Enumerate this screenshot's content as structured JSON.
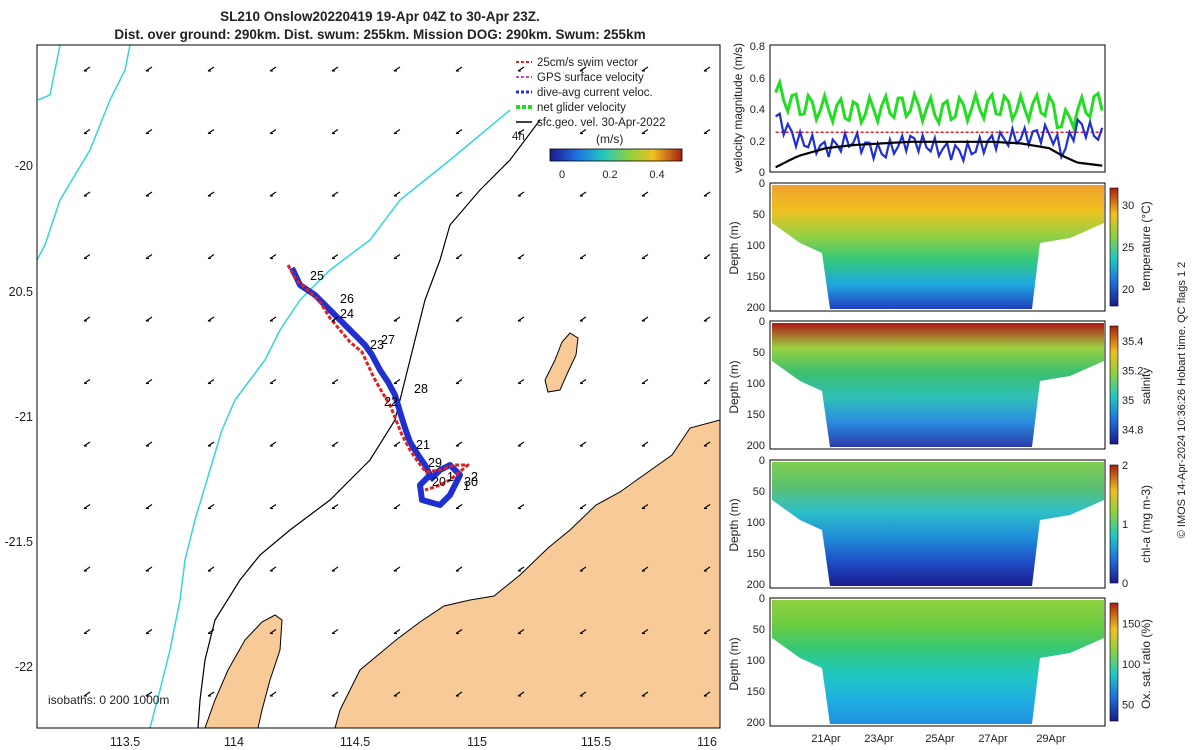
{
  "title_line1": "SL210 Onslow20220419 19-Apr 04Z to 30-Apr 23Z.",
  "title_line2": "Dist. over ground: 290km. Dist. swum: 255km. Mission DOG: 290km. Swum: 255km",
  "map": {
    "lon_ticks": [
      "113.5",
      "114",
      "114.5",
      "115",
      "115.5",
      "116"
    ],
    "lat_ticks": [
      "-20",
      "20.5",
      "-21",
      "-21.5",
      "-22"
    ],
    "xlim": [
      113.15,
      116.05
    ],
    "ylim": [
      -22.25,
      -19.5
    ],
    "legend": [
      {
        "label": "25cm/s swim vector",
        "color": "#e02020"
      },
      {
        "label": "GPS surface velocity",
        "color": "#cc44cc"
      },
      {
        "label": "dive-avg current veloc.",
        "color": "#1f2fd0"
      },
      {
        "label": "net glider velocity",
        "color": "#22dd22"
      },
      {
        "label": "sfc.geo. vel. 30-Apr-2022",
        "color": "#000000"
      }
    ],
    "legend_extra": "4h",
    "colorbar_label": "(m/s)",
    "colorbar_ticks": [
      "0",
      "0.2",
      "0.4"
    ],
    "isobaths_label": "isobaths: 0   200  1000m",
    "day_labels": [
      "25",
      "26",
      "24",
      "27",
      "23",
      "28",
      "22",
      "21",
      "29",
      "20",
      "2",
      "30",
      "1",
      "1"
    ],
    "land_color": "#f8ca98",
    "coast_color": "#33d6e0"
  },
  "chart_data": [
    {
      "type": "line",
      "title": "velocity magnitude",
      "ylabel": "velocity magnitude (m/s)",
      "ylim": [
        0,
        0.8
      ],
      "yticks": [
        "0",
        "0.2",
        "0.4",
        "0.6",
        "0.8"
      ],
      "x_days": [
        19.2,
        20.0,
        21.0,
        22.0,
        23.0,
        24.0,
        25.0,
        26.0,
        27.0,
        28.0,
        29.0,
        29.5,
        30.0,
        30.9
      ],
      "series": [
        {
          "name": "net glider velocity",
          "color": "#22dd22",
          "values": [
            0.5,
            0.42,
            0.4,
            0.38,
            0.4,
            0.42,
            0.38,
            0.4,
            0.42,
            0.4,
            0.42,
            0.3,
            0.38,
            0.45
          ]
        },
        {
          "name": "swim speed",
          "color": "#e02020",
          "values": [
            0.25,
            0.25,
            0.25,
            0.25,
            0.25,
            0.25,
            0.25,
            0.25,
            0.25,
            0.25,
            0.25,
            0.25,
            0.25,
            0.25
          ]
        },
        {
          "name": "dive-avg current",
          "color": "#1f2fd0",
          "values": [
            0.35,
            0.2,
            0.15,
            0.2,
            0.12,
            0.2,
            0.15,
            0.12,
            0.2,
            0.22,
            0.25,
            0.12,
            0.3,
            0.22
          ]
        },
        {
          "name": "sfc geostrophic",
          "color": "#000000",
          "values": [
            0.03,
            0.1,
            0.15,
            0.17,
            0.18,
            0.19,
            0.19,
            0.19,
            0.19,
            0.18,
            0.15,
            0.1,
            0.06,
            0.04
          ]
        }
      ]
    },
    {
      "type": "heatmap",
      "ylabel": "Depth (m)",
      "colorbar_label": "temperature (°C)",
      "ylim": [
        200,
        0
      ],
      "yticks": [
        "0",
        "50",
        "100",
        "150",
        "200"
      ],
      "cticks": [
        "20",
        "25",
        "30"
      ],
      "crange": [
        18,
        32
      ]
    },
    {
      "type": "heatmap",
      "ylabel": "Depth (m)",
      "colorbar_label": "salinity",
      "ylim": [
        200,
        0
      ],
      "yticks": [
        "0",
        "50",
        "100",
        "150",
        "200"
      ],
      "cticks": [
        "34.8",
        "35",
        "35.2",
        "35.4"
      ],
      "crange": [
        34.7,
        35.5
      ]
    },
    {
      "type": "heatmap",
      "ylabel": "Depth (m)",
      "colorbar_label": "chl-a (mg m-3)",
      "ylim": [
        200,
        0
      ],
      "yticks": [
        "0",
        "50",
        "100",
        "150",
        "200"
      ],
      "cticks": [
        "0",
        "1",
        "2"
      ],
      "crange": [
        0,
        2
      ]
    },
    {
      "type": "heatmap",
      "ylabel": "Depth (m)",
      "colorbar_label": "Ox. sat. ratio (%)",
      "ylim": [
        200,
        0
      ],
      "yticks": [
        "0",
        "50",
        "100",
        "150",
        "200"
      ],
      "cticks": [
        "50",
        "100",
        "150"
      ],
      "crange": [
        30,
        175
      ],
      "xticks": [
        "21Apr",
        "23Apr",
        "25Apr",
        "27Apr",
        "29Apr"
      ]
    }
  ],
  "footer": "© IMOS 14-Apr-2024 10:36:26 Hobart time. QC flags 1  2"
}
